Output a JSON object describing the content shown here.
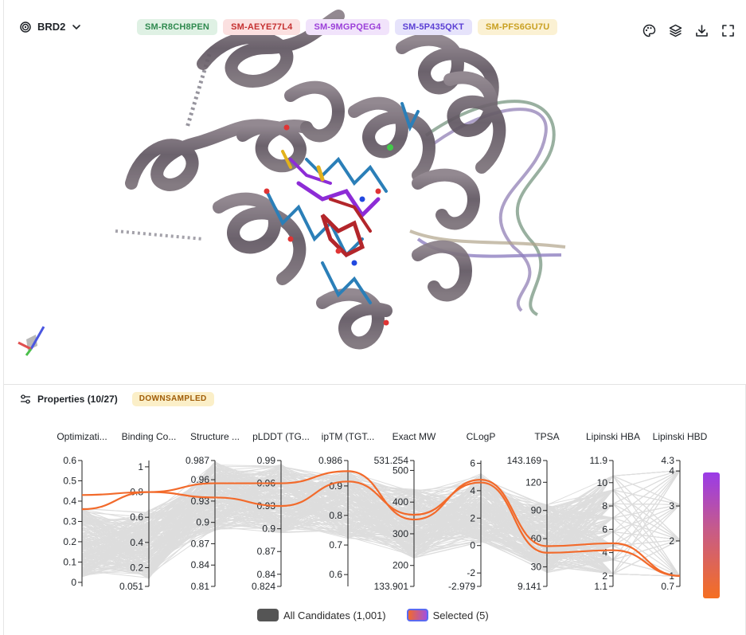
{
  "viewer": {
    "target": "BRD2",
    "target_icon": "target-icon",
    "dropdown_icon": "chevron-down-icon",
    "chips": [
      {
        "label": "SM-R8CH8PEN",
        "bg": "#dff1e4",
        "fg": "#2f8a4f"
      },
      {
        "label": "SM-AEYE77L4",
        "bg": "#fbe0e0",
        "fg": "#c53030"
      },
      {
        "label": "SM-9MGPQEG4",
        "bg": "#f1e3fb",
        "fg": "#9b3fd9"
      },
      {
        "label": "SM-5P435QKT",
        "bg": "#e6e3fb",
        "fg": "#5a3fd4"
      },
      {
        "label": "SM-PFS6GU7U",
        "bg": "#fbf1d3",
        "fg": "#c9a021"
      }
    ],
    "tools": [
      "palette-icon",
      "layers-icon",
      "download-icon",
      "fullscreen-icon"
    ]
  },
  "properties": {
    "icon": "sliders-icon",
    "title": "Properties (10/27)",
    "badge": "DOWNSAMPLED"
  },
  "chart_data": {
    "type": "parallel-coordinates",
    "axes": [
      {
        "label": "Optimizati...",
        "ticks": [
          "0.6",
          "0.5",
          "0.4",
          "0.3",
          "0.2",
          "0.1",
          "0"
        ]
      },
      {
        "label": "Binding Co...",
        "ticks": [
          "1",
          "0.8",
          "0.6",
          "0.4",
          "0.2",
          "0.051"
        ]
      },
      {
        "label": "Structure ...",
        "ticks": [
          "0.987",
          "0.96",
          "0.93",
          "0.9",
          "0.87",
          "0.84",
          "0.81"
        ]
      },
      {
        "label": "pLDDT (TG...",
        "ticks": [
          "0.99",
          "0.96",
          "0.93",
          "0.9",
          "0.87",
          "0.84",
          "0.824"
        ]
      },
      {
        "label": "ipTM (TGT...",
        "ticks": [
          "0.986",
          "0.9",
          "0.8",
          "0.7",
          "0.6"
        ]
      },
      {
        "label": "Exact MW",
        "ticks": [
          "531.254",
          "500",
          "400",
          "300",
          "200",
          "133.901"
        ]
      },
      {
        "label": "CLogP",
        "ticks": [
          "6",
          "4",
          "2",
          "0",
          "-2",
          "-2.979"
        ]
      },
      {
        "label": "TPSA",
        "ticks": [
          "143.169",
          "120",
          "90",
          "60",
          "30",
          "9.141"
        ]
      },
      {
        "label": "Lipinski HBA",
        "ticks": [
          "11.9",
          "10",
          "8",
          "6",
          "4",
          "2",
          "1.1"
        ]
      },
      {
        "label": "Lipinski HBD",
        "ticks": [
          "4.3",
          "4",
          "3",
          "2",
          "1",
          "0.7"
        ]
      }
    ],
    "series": [
      {
        "name": "All Candidates (1,001)",
        "color": "#555555"
      },
      {
        "name": "Selected (5)",
        "color": "#f26a2b"
      }
    ],
    "selected_lines": [
      [
        0.43,
        0.8,
        0.955,
        0.96,
        0.95,
        345,
        4.8,
        52,
        4.8,
        1.0
      ],
      [
        0.36,
        0.8,
        0.935,
        0.93,
        0.915,
        360,
        4.6,
        45,
        4.2,
        1.0
      ]
    ],
    "colorbar": {
      "top": "#9a3be8",
      "bottom": "#f56f22"
    }
  },
  "legend": {
    "all_label": "All Candidates (1,001)",
    "selected_label": "Selected (5)"
  }
}
